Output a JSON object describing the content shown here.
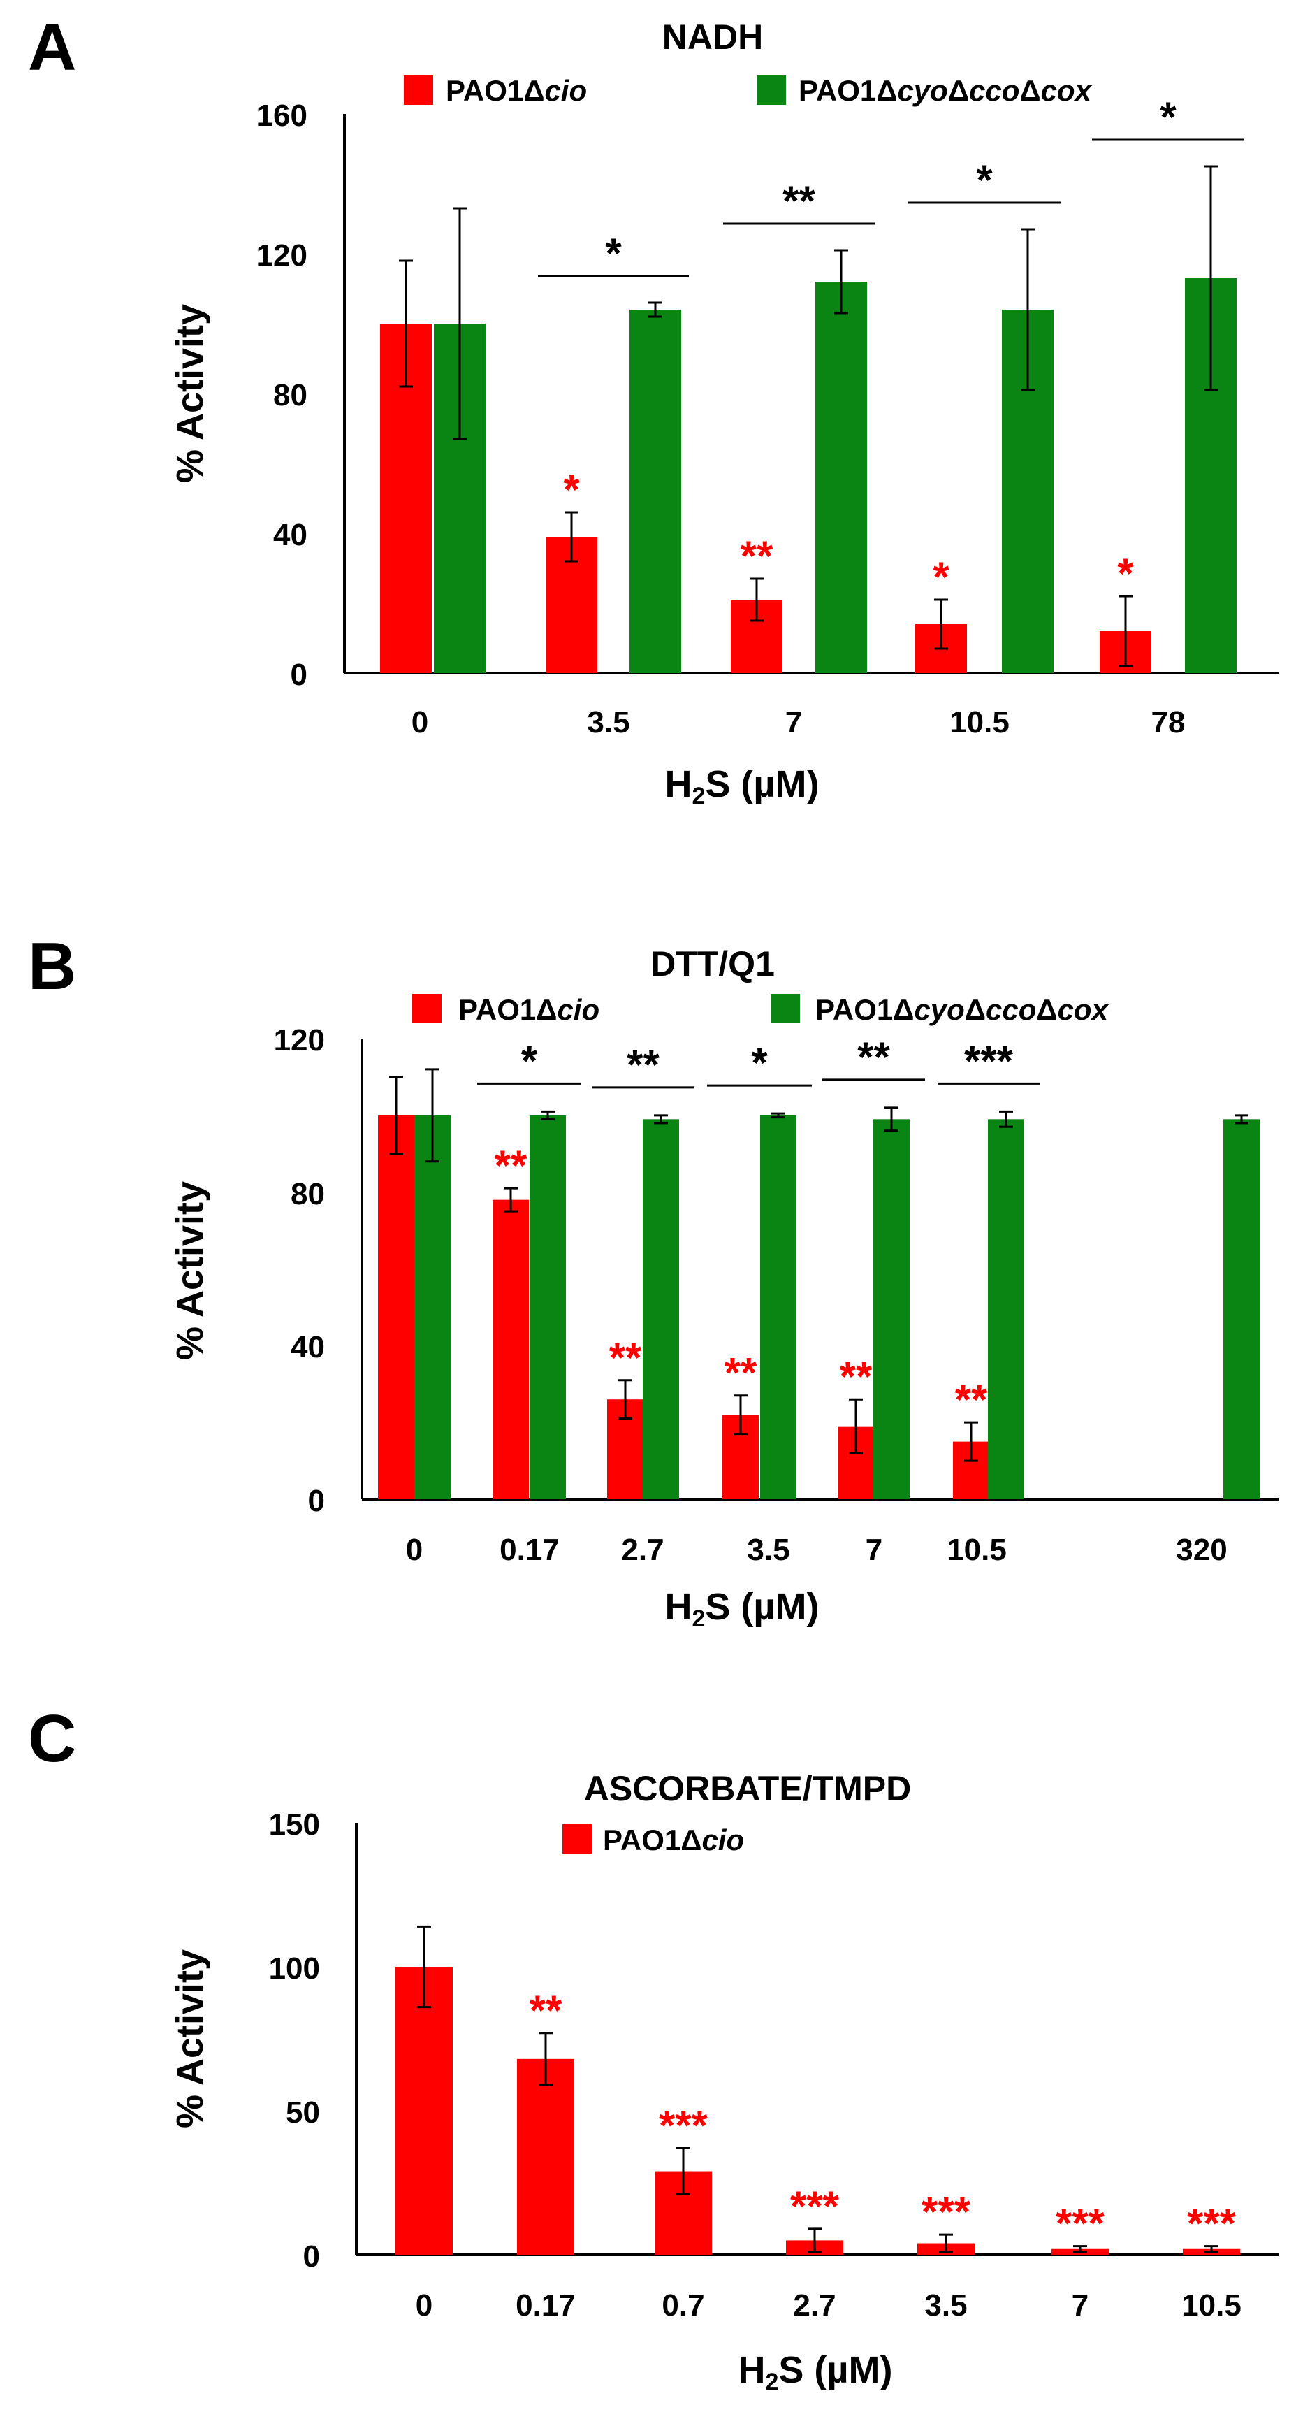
{
  "colors": {
    "red": "#ff0000",
    "green": "#0a8413",
    "black": "#000000"
  },
  "chart_data": [
    {
      "type": "bar",
      "panel": "A",
      "title": "NADH",
      "xlabel": {
        "pre": "H",
        "sub": "2",
        "post": "S (µM)"
      },
      "ylabel": "% Activity",
      "ylim": [
        0,
        160
      ],
      "yticks": [
        0,
        40,
        80,
        120,
        160
      ],
      "categories": [
        "0",
        "3.5",
        "7",
        "10.5",
        "78"
      ],
      "legend": [
        {
          "pre": "PAO1Δ",
          "it": "cio",
          "color": "red"
        },
        {
          "pre": "PAO1Δ",
          "it": "cyo",
          "mid": "Δ",
          "it2": "cco",
          "mid2": "Δ",
          "it3": "cox",
          "color": "green"
        }
      ],
      "series": [
        {
          "name": "PAO1Δcio",
          "color": "red",
          "values": [
            100,
            39,
            21,
            14,
            12
          ],
          "errors": [
            18,
            7,
            6,
            7,
            10
          ],
          "stars": [
            "",
            "*",
            "**",
            "*",
            "*"
          ]
        },
        {
          "name": "PAO1ΔcyoΔccoΔcox",
          "color": "green",
          "values": [
            100,
            104,
            112,
            104,
            113
          ],
          "errors": [
            33,
            2,
            9,
            23,
            32
          ]
        }
      ],
      "brackets": [
        "",
        "*",
        "**",
        "*",
        "*"
      ]
    },
    {
      "type": "bar",
      "panel": "B",
      "title": "DTT/Q1",
      "xlabel": {
        "pre": "H",
        "sub": "2",
        "post": "S (µM)"
      },
      "ylabel": "% Activity",
      "ylim": [
        0,
        120
      ],
      "yticks": [
        0,
        40,
        80,
        120
      ],
      "categories": [
        "0",
        "0.17",
        "2.7",
        "3.5",
        "7",
        "10.5",
        "320"
      ],
      "legend": [
        {
          "pre": "PAO1Δ",
          "it": "cio",
          "color": "red"
        },
        {
          "pre": "PAO1Δ",
          "it": "cyo",
          "mid": "Δ",
          "it2": "cco",
          "mid2": "Δ",
          "it3": "cox",
          "color": "green"
        }
      ],
      "series": [
        {
          "name": "PAO1Δcio",
          "color": "red",
          "values": [
            100,
            78,
            26,
            22,
            19,
            15,
            null
          ],
          "errors": [
            10,
            3,
            5,
            5,
            7,
            5,
            null
          ],
          "stars": [
            "",
            "**",
            "**",
            "**",
            "**",
            "**",
            ""
          ]
        },
        {
          "name": "PAO1ΔcyoΔccoΔcox",
          "color": "green",
          "values": [
            100,
            100,
            99,
            100,
            99,
            99,
            99
          ],
          "errors": [
            12,
            1,
            1,
            0.5,
            3,
            2,
            1
          ]
        }
      ],
      "brackets": [
        "",
        "*",
        "**",
        "*",
        "**",
        "***",
        ""
      ]
    },
    {
      "type": "bar",
      "panel": "C",
      "title": "ASCORBATE/TMPD",
      "xlabel": {
        "pre": "H",
        "sub": "2",
        "post": "S (µM)"
      },
      "ylabel": "% Activity",
      "ylim": [
        0,
        150
      ],
      "yticks": [
        0,
        50,
        100,
        150
      ],
      "categories": [
        "0",
        "0.17",
        "0.7",
        "2.7",
        "3.5",
        "7",
        "10.5"
      ],
      "legend": [
        {
          "pre": "PAO1Δ",
          "it": "cio",
          "color": "red"
        }
      ],
      "series": [
        {
          "name": "PAO1Δcio",
          "color": "red",
          "values": [
            100,
            68,
            29,
            5,
            4,
            2,
            2
          ],
          "errors": [
            14,
            9,
            8,
            4,
            3,
            1,
            1
          ],
          "stars": [
            "",
            "**",
            "***",
            "***",
            "***",
            "***",
            "***"
          ]
        }
      ],
      "brackets": []
    }
  ]
}
